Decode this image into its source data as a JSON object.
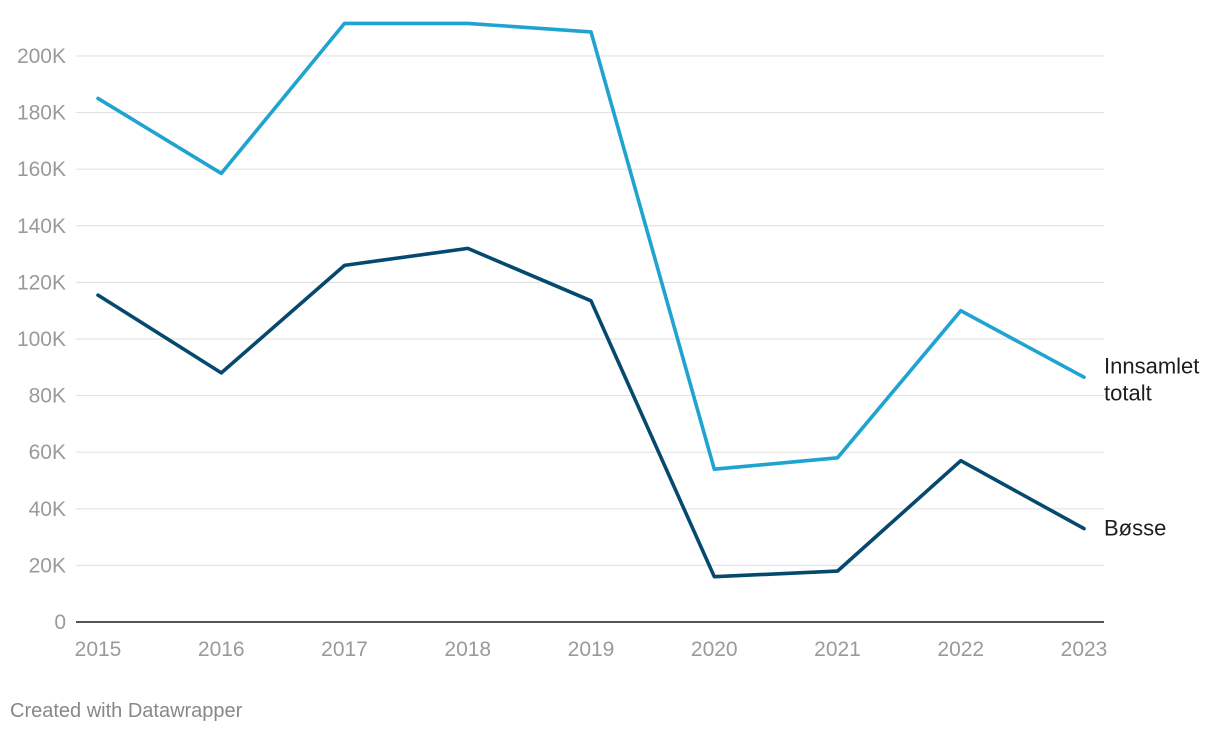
{
  "chart_data": {
    "type": "line",
    "x": [
      "2015",
      "2016",
      "2017",
      "2018",
      "2019",
      "2020",
      "2021",
      "2022",
      "2023"
    ],
    "y_ticks": [
      {
        "value": 0,
        "label": "0"
      },
      {
        "value": 20000,
        "label": "20K"
      },
      {
        "value": 40000,
        "label": "40K"
      },
      {
        "value": 60000,
        "label": "60K"
      },
      {
        "value": 80000,
        "label": "80K"
      },
      {
        "value": 100000,
        "label": "100K"
      },
      {
        "value": 120000,
        "label": "120K"
      },
      {
        "value": 140000,
        "label": "140K"
      },
      {
        "value": 160000,
        "label": "160K"
      },
      {
        "value": 180000,
        "label": "180K"
      },
      {
        "value": 200000,
        "label": "200K"
      }
    ],
    "ylim": [
      0,
      212000
    ],
    "grid": true,
    "series": [
      {
        "name": "Innsamlet totalt",
        "label_lines": [
          "Innsamlet",
          "totalt"
        ],
        "color": "#1fa3d0",
        "values": [
          185000,
          158500,
          211500,
          211500,
          208500,
          54000,
          58000,
          110000,
          86500
        ]
      },
      {
        "name": "Bøsse",
        "label_lines": [
          "Bøsse"
        ],
        "color": "#054a6e",
        "values": [
          115500,
          88000,
          126000,
          132000,
          113500,
          16000,
          18000,
          57000,
          33000
        ]
      }
    ],
    "title": "",
    "xlabel": "",
    "ylabel": ""
  },
  "footer": {
    "credit": "Created with Datawrapper"
  }
}
